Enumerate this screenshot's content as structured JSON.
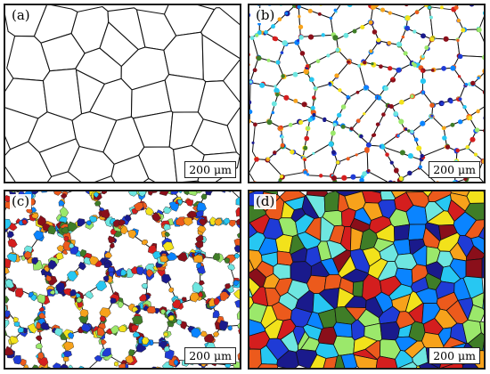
{
  "panels": [
    {
      "label": "(a)",
      "scale_bar": "200 μm"
    },
    {
      "label": "(b)",
      "scale_bar": "200 μm"
    },
    {
      "label": "(c)",
      "scale_bar": "200 μm"
    },
    {
      "label": "(d)",
      "scale_bar": "200 μm"
    }
  ],
  "colors": {
    "boundary": "#111111",
    "palette": [
      "#1f3bd6",
      "#0a84ff",
      "#27c7f2",
      "#6ee6e0",
      "#9be86b",
      "#f2e21b",
      "#f7a21b",
      "#ec5a1c",
      "#d41e1e",
      "#8a0f1a",
      "#1a1a8c",
      "#3f7d27"
    ]
  }
}
